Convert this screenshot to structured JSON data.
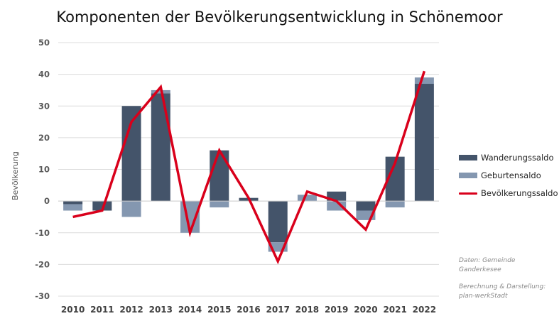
{
  "title": "Komponenten der Bevölkerungsentwicklung  in Schönemoor",
  "ylabel": "Bevölkerung",
  "legend": {
    "wanderung": "Wanderungssaldo",
    "geburten": "Geburtensaldo",
    "bevoelkerung": "Bevölkerungssaldo"
  },
  "notes": {
    "source": "Daten: Gemeinde Ganderkesee",
    "credit": "Berechnung  & Darstellung: plan-werkStadt"
  },
  "colors": {
    "wanderung": "#44546a",
    "geburten": "#8497b0",
    "bevoelkerung": "#d9001b",
    "grid": "#dcdcdc"
  },
  "chart_data": {
    "type": "bar",
    "categories": [
      "2010",
      "2011",
      "2012",
      "2013",
      "2014",
      "2015",
      "2016",
      "2017",
      "2018",
      "2019",
      "2020",
      "2021",
      "2022"
    ],
    "series": [
      {
        "name": "Wanderungssaldo",
        "type": "bar",
        "values": [
          -1,
          -3,
          30,
          34,
          0,
          16,
          1,
          -13,
          0,
          3,
          -3,
          14,
          37
        ]
      },
      {
        "name": "Geburtensaldo",
        "type": "bar",
        "values": [
          -2,
          0,
          -5,
          1,
          -10,
          -2,
          0,
          -3,
          2,
          -3,
          -3,
          -2,
          2
        ]
      },
      {
        "name": "Bevölkerungssaldo",
        "type": "line",
        "values": [
          -5,
          -3,
          25,
          36,
          -10,
          16,
          1,
          -19,
          3,
          0,
          -9,
          12,
          41
        ]
      }
    ],
    "yticks": [
      -30,
      -20,
      -10,
      0,
      10,
      20,
      30,
      40,
      50
    ],
    "ylim": [
      -30,
      50
    ],
    "ylabel": "Bevölkerung",
    "grid": true,
    "legend_position": "right"
  }
}
